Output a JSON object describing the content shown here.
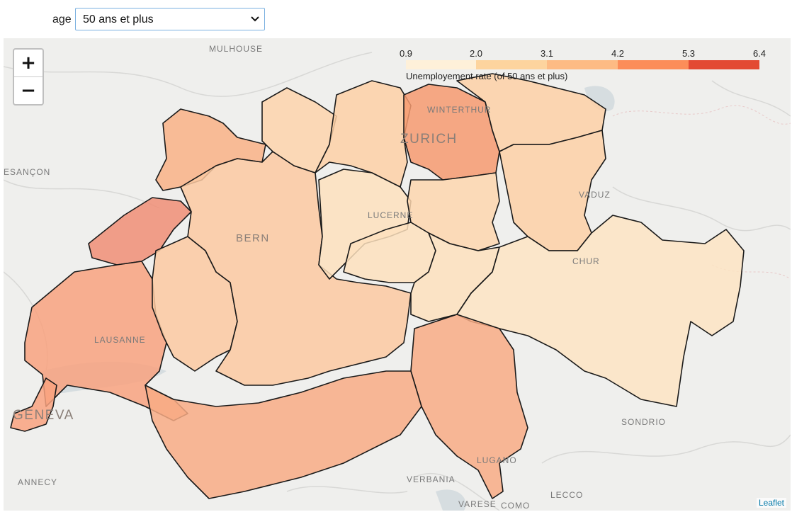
{
  "controls": {
    "age_label": "age",
    "age_selected": "50 ans et plus"
  },
  "zoom": {
    "in_label": "+",
    "out_label": "−"
  },
  "legend": {
    "ticks": [
      "0.9",
      "2.0",
      "3.1",
      "4.2",
      "5.3",
      "6.4"
    ],
    "caption": "Unemployement rate (of 50 ans et plus)",
    "colors": [
      "#fef0d9",
      "#fdd49e",
      "#fdbb84",
      "#fc8d59",
      "#e34a33"
    ]
  },
  "cities": [
    {
      "name": "MULHOUSE",
      "size": "small"
    },
    {
      "name": "ESANÇON",
      "size": "small"
    },
    {
      "name": "WINTERTHUR",
      "size": "small"
    },
    {
      "name": "ZURICH",
      "size": "big"
    },
    {
      "name": "VADUZ",
      "size": "small"
    },
    {
      "name": "LUCERNE",
      "size": "small"
    },
    {
      "name": "BERN",
      "size": "big"
    },
    {
      "name": "CHUR",
      "size": "small"
    },
    {
      "name": "LAUSANNE",
      "size": "small"
    },
    {
      "name": "GENEVA",
      "size": "big"
    },
    {
      "name": "SONDRIO",
      "size": "small"
    },
    {
      "name": "LUGANO",
      "size": "small"
    },
    {
      "name": "ANNECY",
      "size": "small"
    },
    {
      "name": "VERBANIA",
      "size": "small"
    },
    {
      "name": "LECCO",
      "size": "small"
    },
    {
      "name": "VARESE",
      "size": "small"
    },
    {
      "name": "COMO",
      "size": "small"
    }
  ],
  "attribution": "Leaflet"
}
